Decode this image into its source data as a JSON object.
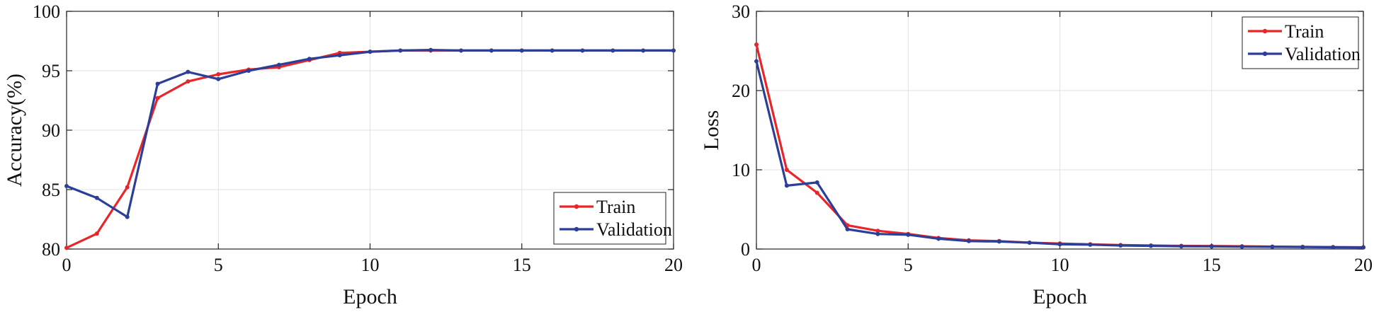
{
  "chart_data": [
    {
      "type": "line",
      "title": "",
      "xlabel": "Epoch",
      "ylabel": "Accuracy(%)",
      "xlim": [
        0,
        20
      ],
      "ylim": [
        80,
        100
      ],
      "xticks": [
        0,
        5,
        10,
        15,
        20
      ],
      "yticks": [
        80,
        85,
        90,
        95,
        100
      ],
      "grid": true,
      "legend_position": "bottom-right",
      "x": [
        0,
        1,
        2,
        3,
        4,
        5,
        6,
        7,
        8,
        9,
        10,
        11,
        12,
        13,
        14,
        15,
        16,
        17,
        18,
        19,
        20
      ],
      "series": [
        {
          "name": "Train",
          "color": "#e8262a",
          "values": [
            80.1,
            81.3,
            85.2,
            92.7,
            94.1,
            94.7,
            95.1,
            95.3,
            95.9,
            96.5,
            96.6,
            96.7,
            96.7,
            96.7,
            96.7,
            96.7,
            96.7,
            96.7,
            96.7,
            96.7,
            96.7
          ]
        },
        {
          "name": "Validation",
          "color": "#2c3f98",
          "values": [
            85.3,
            84.3,
            82.7,
            93.9,
            94.9,
            94.3,
            95.0,
            95.5,
            96.0,
            96.3,
            96.6,
            96.7,
            96.75,
            96.7,
            96.7,
            96.7,
            96.7,
            96.7,
            96.7,
            96.7,
            96.7
          ]
        }
      ]
    },
    {
      "type": "line",
      "title": "",
      "xlabel": "Epoch",
      "ylabel": "Loss",
      "xlim": [
        0,
        20
      ],
      "ylim": [
        0,
        30
      ],
      "xticks": [
        0,
        5,
        10,
        15,
        20
      ],
      "yticks": [
        0,
        10,
        20,
        30
      ],
      "grid": true,
      "legend_position": "top-right",
      "x": [
        0,
        1,
        2,
        3,
        4,
        5,
        6,
        7,
        8,
        9,
        10,
        11,
        12,
        13,
        14,
        15,
        16,
        17,
        18,
        19,
        20
      ],
      "series": [
        {
          "name": "Train",
          "color": "#e8262a",
          "values": [
            25.8,
            10.0,
            7.1,
            3.0,
            2.3,
            1.9,
            1.4,
            1.1,
            1.0,
            0.8,
            0.7,
            0.6,
            0.5,
            0.45,
            0.4,
            0.38,
            0.35,
            0.3,
            0.28,
            0.25,
            0.22
          ]
        },
        {
          "name": "Validation",
          "color": "#2c3f98",
          "values": [
            23.7,
            8.0,
            8.4,
            2.5,
            1.9,
            1.8,
            1.3,
            1.0,
            0.95,
            0.8,
            0.6,
            0.55,
            0.45,
            0.4,
            0.35,
            0.33,
            0.3,
            0.28,
            0.25,
            0.22,
            0.2
          ]
        }
      ]
    }
  ]
}
